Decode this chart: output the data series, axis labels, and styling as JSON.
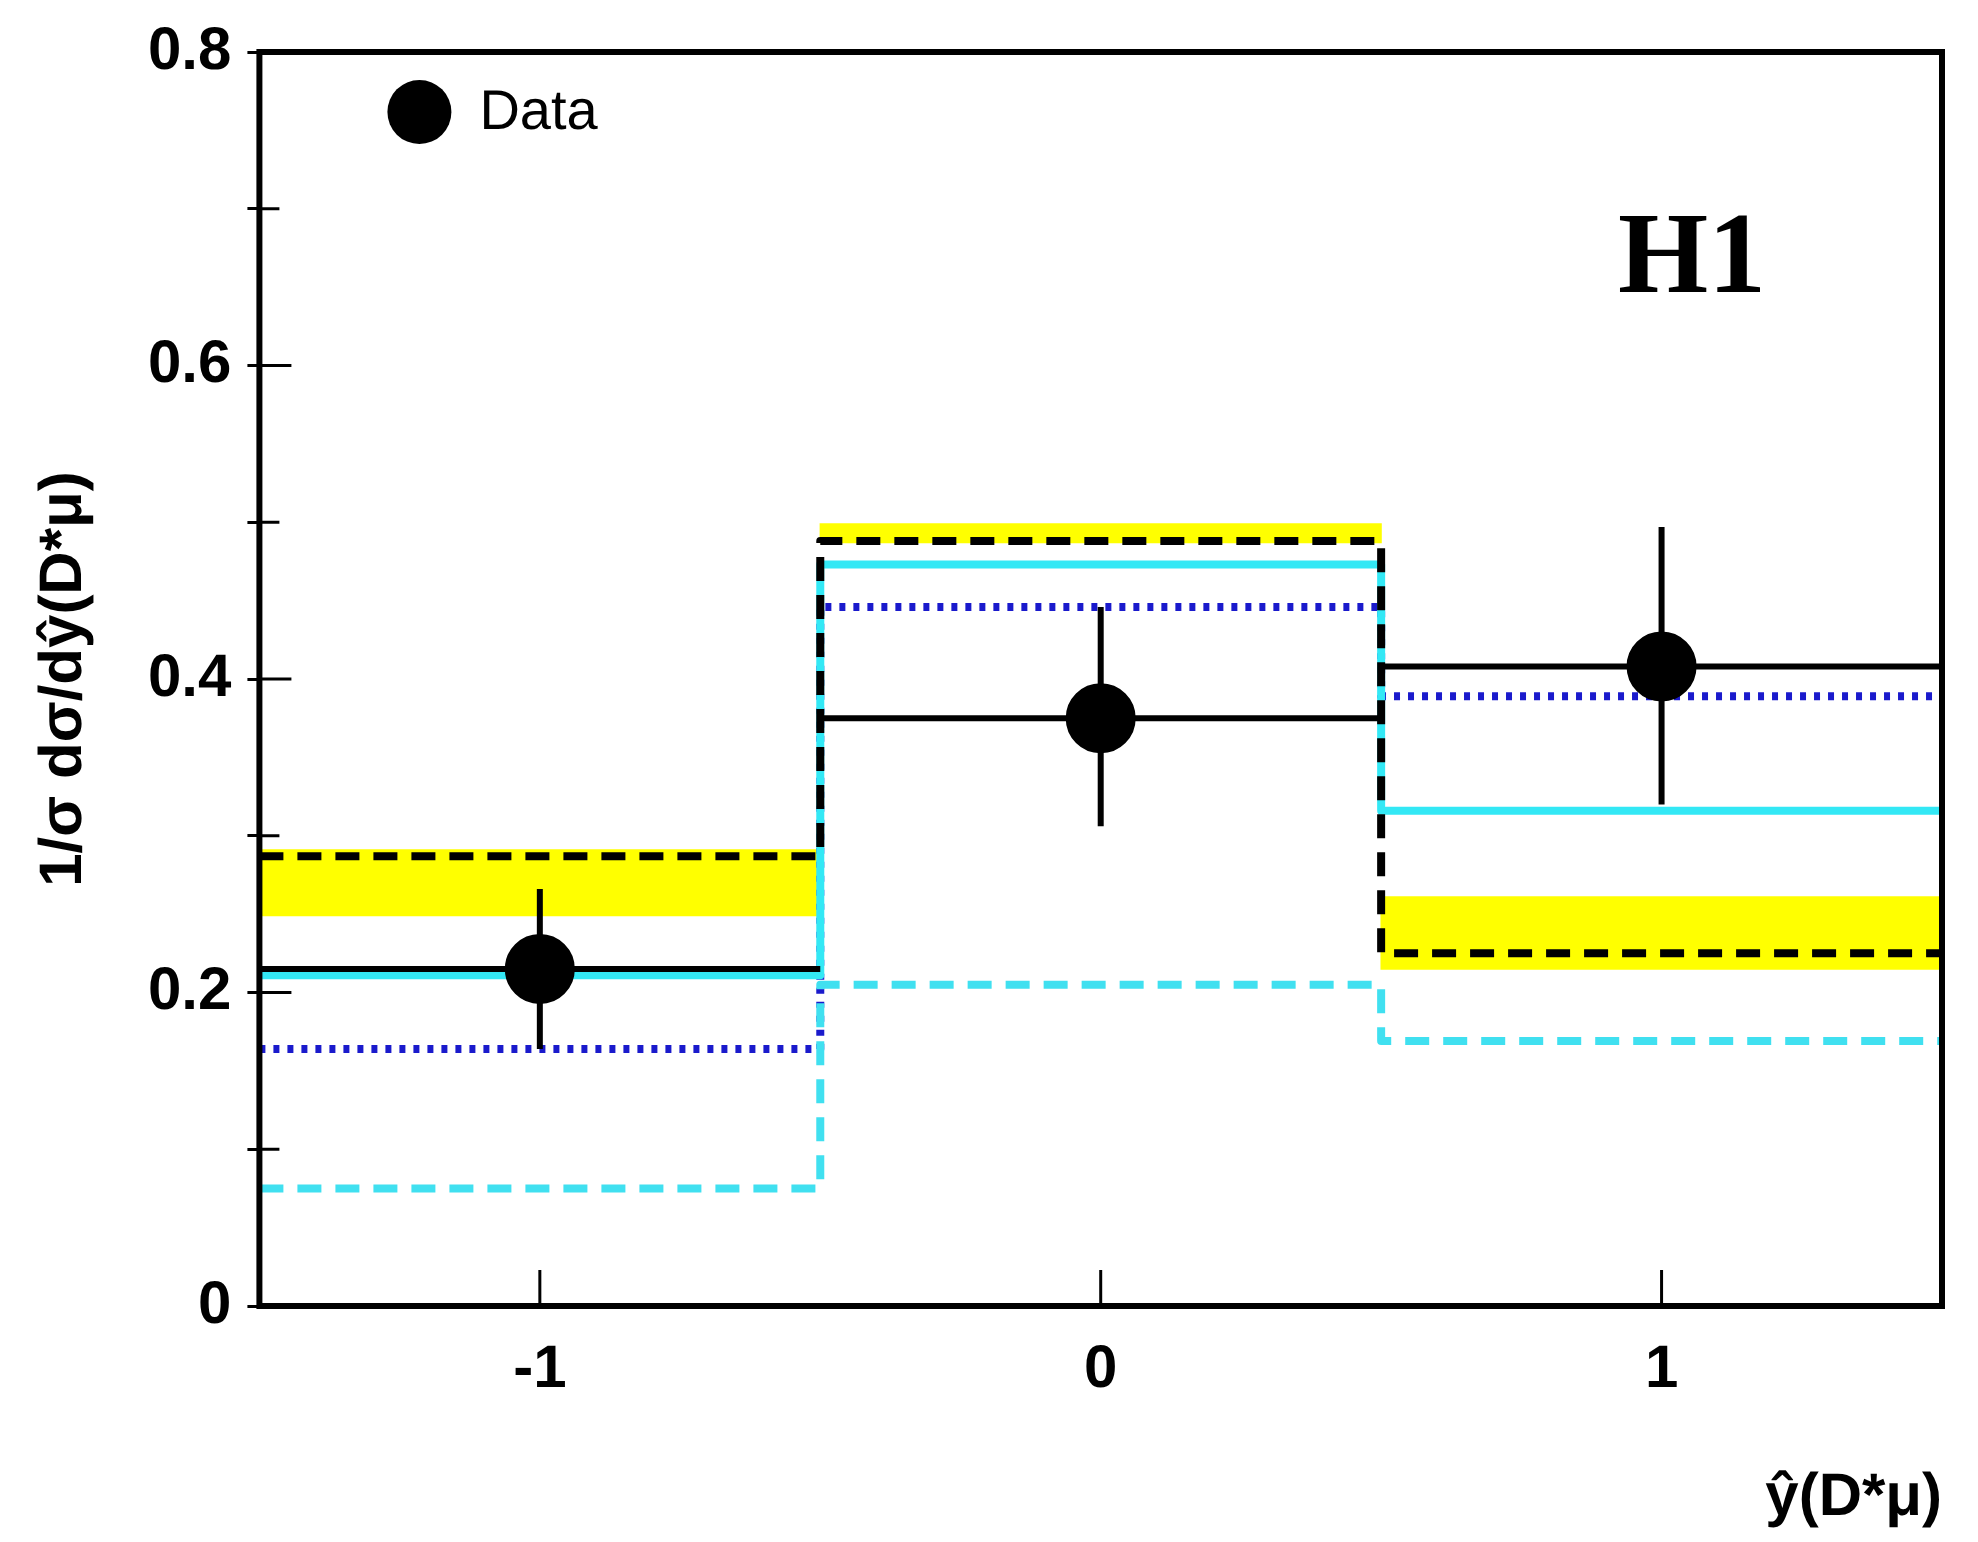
{
  "chart_data": {
    "type": "histogram",
    "ylabel": "1/σ dσ/dŷ(D*μ)",
    "xlabel": "ŷ(D*μ)",
    "annotations": [
      "H1"
    ],
    "bins": [
      -1.5,
      -0.5,
      0.5,
      1.5
    ],
    "xlim": [
      -1.5,
      1.5
    ],
    "xticks": [
      -1,
      0,
      1
    ],
    "ylim": [
      0,
      0.8
    ],
    "yticks": [
      0,
      {
        "value": 0.1,
        "label": null
      },
      0.2,
      {
        "value": 0.3,
        "label": null
      },
      0.4,
      {
        "value": 0.5,
        "label": null
      },
      0.6,
      {
        "value": 0.7,
        "label": null
      },
      0.8
    ],
    "grid": false,
    "legend": "top left",
    "series": [
      {
        "name": "Data",
        "type": "scatter",
        "marker": "circle",
        "color": "#000000",
        "x": [
          -1,
          0,
          1
        ],
        "values": [
          0.215,
          0.375,
          0.408
        ],
        "errors": [
          [
            0.164,
            0.266
          ],
          [
            0.306,
            0.446
          ],
          [
            0.32,
            0.497
          ]
        ],
        "xerrors": [
          0.5,
          0.5,
          0.5
        ]
      },
      {
        "type": "bar",
        "color": "#ffff00",
        "x": [
          -1,
          0,
          1
        ],
        "base": [
          0.249,
          0.487,
          0.215
        ],
        "values": [
          0.042,
          0.012,
          0.046
        ]
      },
      {
        "type": "histogram",
        "color": "#000000",
        "line_style": "dashed",
        "values": [
          0.287,
          0.488,
          0.225
        ]
      },
      {
        "type": "histogram",
        "color": "#33e8f5",
        "line_style": "solid",
        "values": [
          0.211,
          0.473,
          0.316
        ]
      },
      {
        "color": "#40e0f0",
        "line_style": "dashed",
        "values": [
          0.075,
          0.205,
          0.169
        ]
      },
      {
        "color": "#1a1acc",
        "line_style": "dotted",
        "values": [
          0.164,
          0.446,
          0.389
        ]
      }
    ]
  }
}
